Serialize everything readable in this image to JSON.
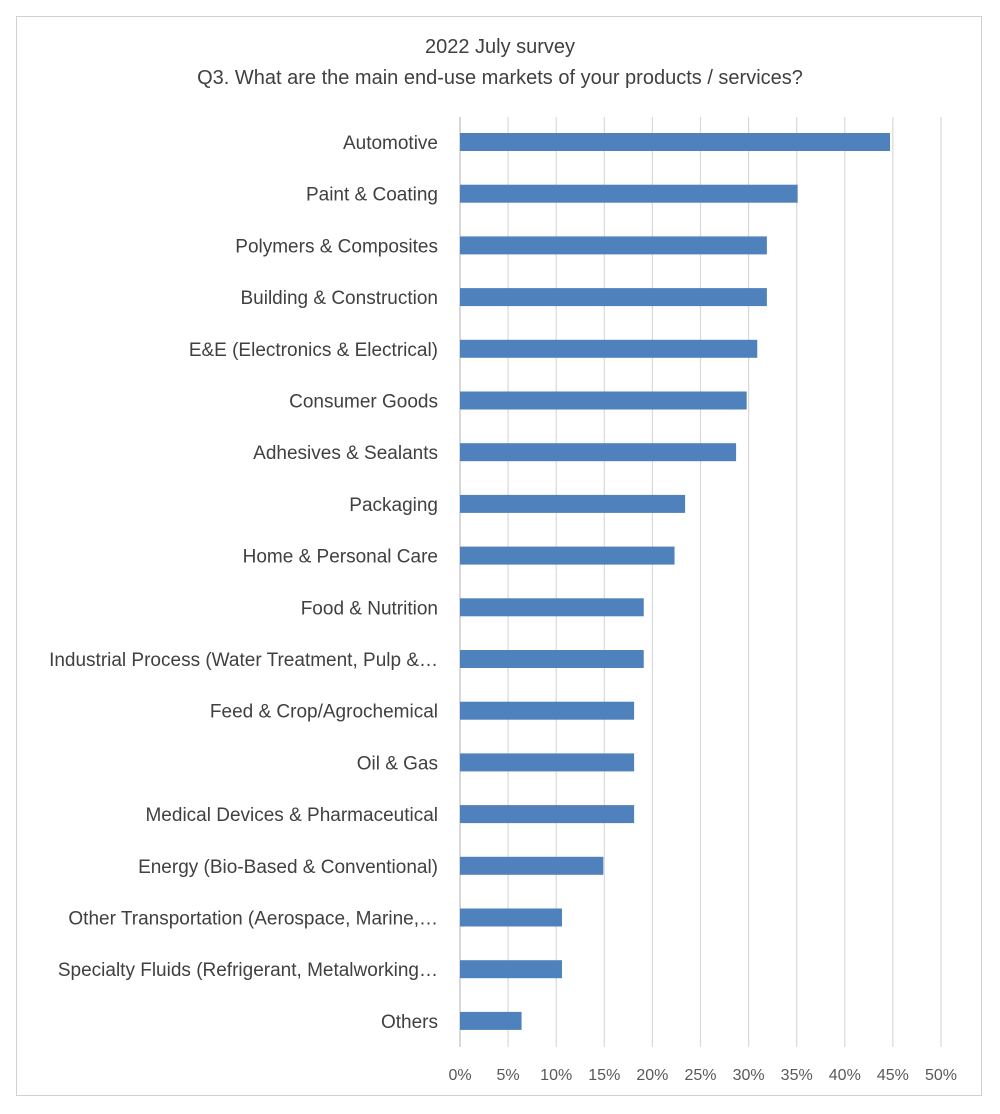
{
  "chart_data": {
    "type": "bar",
    "orientation": "horizontal",
    "title": "2022 July survey",
    "subtitle": "Q3. What are the main end-use markets of your products / services?",
    "categories": [
      "Automotive",
      "Paint & Coating",
      "Polymers & Composites",
      "Building & Construction",
      "E&E (Electronics & Electrical)",
      "Consumer Goods",
      "Adhesives & Sealants",
      "Packaging",
      "Home & Personal Care",
      "Food & Nutrition",
      "Industrial Process (Water Treatment, Pulp &…",
      "Feed & Crop/Agrochemical",
      "Oil & Gas",
      "Medical Devices & Pharmaceutical",
      "Energy (Bio-Based & Conventional)",
      "Other Transportation (Aerospace, Marine,…",
      "Specialty Fluids (Refrigerant, Metalworking…",
      "Others"
    ],
    "values": [
      44.7,
      35.1,
      31.9,
      31.9,
      30.9,
      29.8,
      28.7,
      23.4,
      22.3,
      19.1,
      19.1,
      18.1,
      18.1,
      18.1,
      14.9,
      10.6,
      10.6,
      6.4
    ],
    "xlim": [
      0,
      50
    ],
    "xticks": [
      "0%",
      "5%",
      "10%",
      "15%",
      "20%",
      "25%",
      "30%",
      "35%",
      "40%",
      "45%",
      "50%"
    ],
    "xlabel": "",
    "ylabel": "",
    "grid": true,
    "bar_color": "#4f81bd"
  }
}
